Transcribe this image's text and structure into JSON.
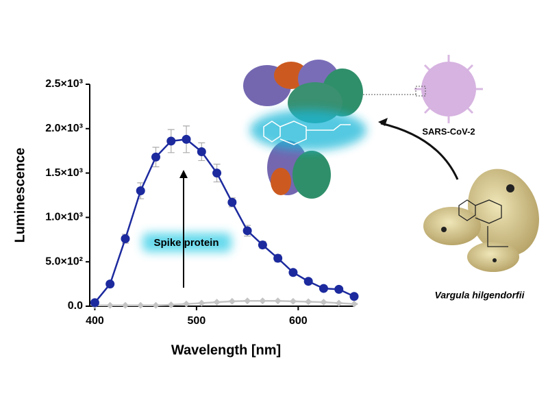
{
  "chart_data": {
    "type": "line",
    "x": [
      400,
      415,
      430,
      445,
      460,
      475,
      490,
      505,
      520,
      535,
      550,
      565,
      580,
      595,
      610,
      625,
      640,
      655
    ],
    "series": [
      {
        "color": "#1c2a9e",
        "marker": "circle",
        "values": [
          40,
          250,
          760,
          1300,
          1680,
          1860,
          1880,
          1740,
          1500,
          1170,
          850,
          690,
          540,
          380,
          280,
          200,
          190,
          110
        ],
        "errors": [
          20,
          30,
          50,
          90,
          110,
          130,
          150,
          100,
          100,
          50,
          60,
          40,
          40,
          30,
          20,
          20,
          20,
          20
        ]
      },
      {
        "color": "#c4c4c4",
        "marker": "diamond",
        "values": [
          10,
          10,
          10,
          10,
          10,
          15,
          25,
          35,
          45,
          55,
          60,
          60,
          60,
          55,
          50,
          45,
          35,
          25
        ],
        "errors": [
          5,
          5,
          5,
          5,
          5,
          5,
          5,
          5,
          5,
          5,
          5,
          5,
          5,
          5,
          5,
          5,
          5,
          5
        ]
      }
    ],
    "xlabel": "Wavelength [nm]",
    "ylabel": "Luminescence",
    "xlim": [
      395,
      655
    ],
    "xticks": [
      400,
      500,
      600
    ],
    "ylim": [
      0,
      2500
    ],
    "yticks": [
      {
        "value": 0,
        "label": "0.0"
      },
      {
        "value": 500,
        "label": "5.0×10²"
      },
      {
        "value": 1000,
        "label": "1.0×10³"
      },
      {
        "value": 1500,
        "label": "1.5×10³"
      },
      {
        "value": 2000,
        "label": "2.0×10³"
      },
      {
        "value": 2500,
        "label": "2.5×10³"
      }
    ],
    "annotations": [
      "Spike protein",
      "SARS-CoV-2",
      "Vargula hilgendorfii"
    ]
  }
}
